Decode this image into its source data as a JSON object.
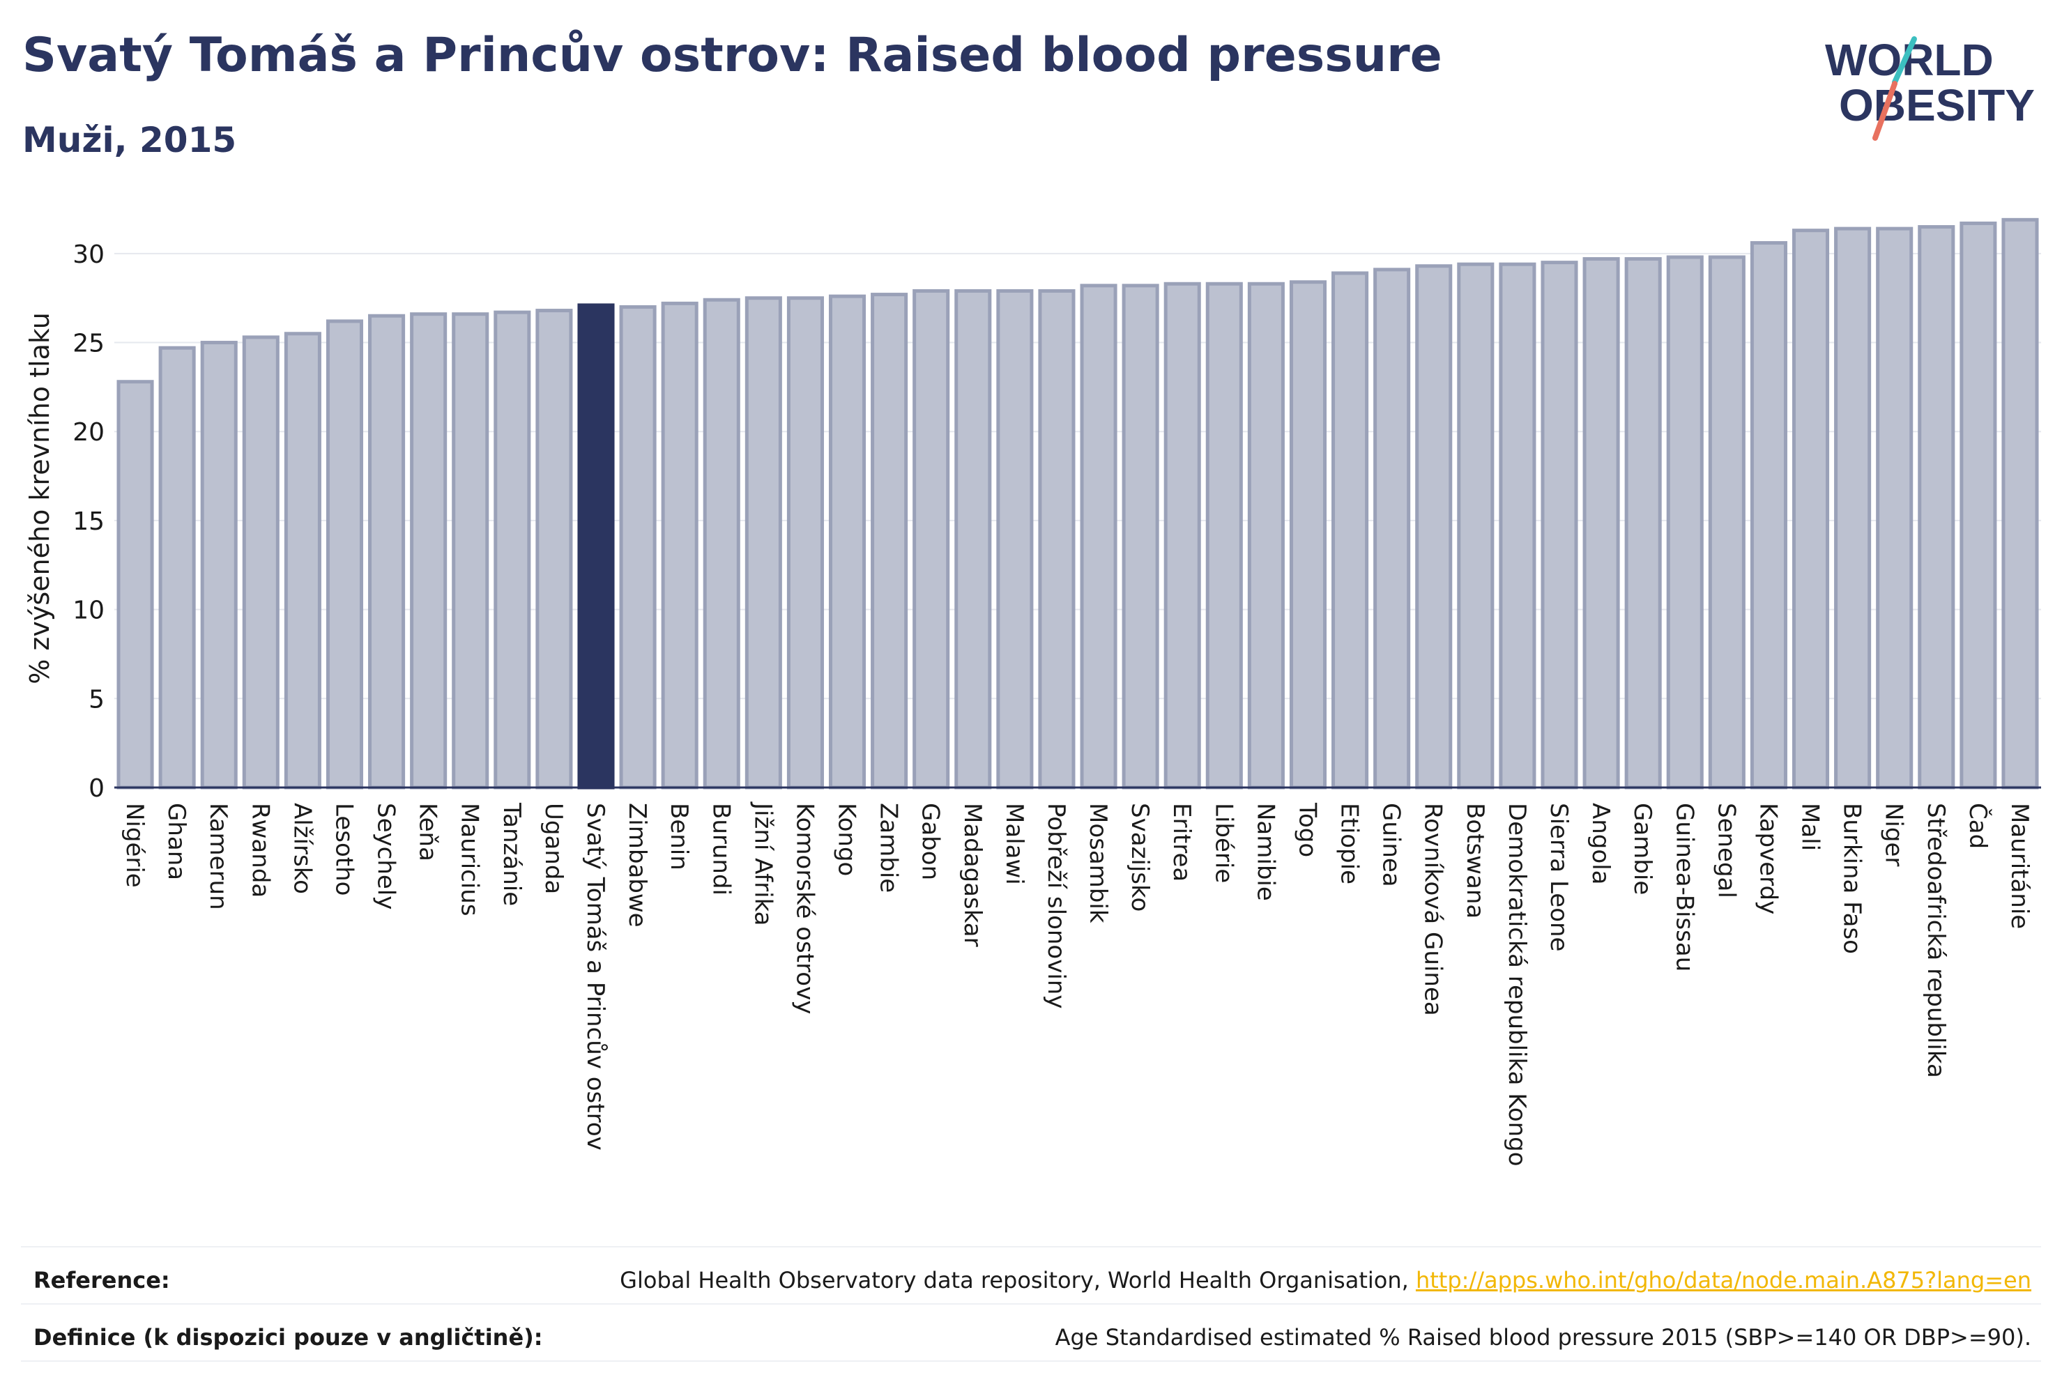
{
  "header": {
    "title": "Svatý Tomáš a Princův ostrov: Raised blood pressure",
    "subtitle": "Muži, 2015"
  },
  "logo": {
    "line1": "WORLD",
    "line2": "OBESITY"
  },
  "colors": {
    "bar": "#bcc1d0",
    "bar_stroke": "#9aa1b8",
    "highlight": "#2b3560",
    "text": "#2b3560",
    "link": "#f2b705",
    "logo_teal": "#3cbfc0",
    "logo_coral": "#e8715f"
  },
  "chart_data": {
    "type": "bar",
    "ylabel": "% zvýšeného krevního tlaku",
    "ylim": [
      0,
      32.5
    ],
    "yticks": [
      0,
      5,
      10,
      15,
      20,
      25,
      30
    ],
    "grid": true,
    "highlight": "Svatý Tomáš a Princův ostrov",
    "categories": [
      "Nigérie",
      "Ghana",
      "Kamerun",
      "Rwanda",
      "Alžírsko",
      "Lesotho",
      "Seychely",
      "Keňa",
      "Mauricius",
      "Tanzánie",
      "Uganda",
      "Svatý Tomáš a Princův ostrov",
      "Zimbabwe",
      "Benin",
      "Burundi",
      "Jižní Afrika",
      "Komorské ostrovy",
      "Kongo",
      "Zambie",
      "Gabon",
      "Madagaskar",
      "Malawi",
      "Pobřeží slonoviny",
      "Mosambik",
      "Svazijsko",
      "Eritrea",
      "Libérie",
      "Namibie",
      "Togo",
      "Etiopie",
      "Guinea",
      "Rovníková Guinea",
      "Botswana",
      "Demokratická republika Kongo",
      "Sierra Leone",
      "Angola",
      "Gambie",
      "Guinea-Bissau",
      "Senegal",
      "Kapverdy",
      "Mali",
      "Burkina Faso",
      "Niger",
      "Středoafrická republika",
      "Čad",
      "Mauritánie"
    ],
    "values": [
      22.8,
      24.7,
      25.0,
      25.3,
      25.5,
      26.2,
      26.5,
      26.6,
      26.6,
      26.7,
      26.8,
      27.1,
      27.0,
      27.2,
      27.4,
      27.5,
      27.5,
      27.6,
      27.7,
      27.9,
      27.9,
      27.9,
      27.9,
      28.2,
      28.2,
      28.3,
      28.3,
      28.3,
      28.4,
      28.9,
      29.1,
      29.3,
      29.4,
      29.4,
      29.5,
      29.7,
      29.7,
      29.8,
      29.8,
      30.6,
      31.3,
      31.4,
      31.4,
      31.5,
      31.7,
      31.9
    ]
  },
  "footer": {
    "reference_label": "Reference:",
    "reference_text": "Global Health Observatory data repository, World Health Organisation, ",
    "reference_link": "http://apps.who.int/gho/data/node.main.A875?lang=en",
    "definition_label": "Definice (k dispozici pouze v angličtině):",
    "definition_text": "Age Standardised estimated % Raised blood pressure 2015 (SBP>=140 OR DBP>=90)."
  }
}
